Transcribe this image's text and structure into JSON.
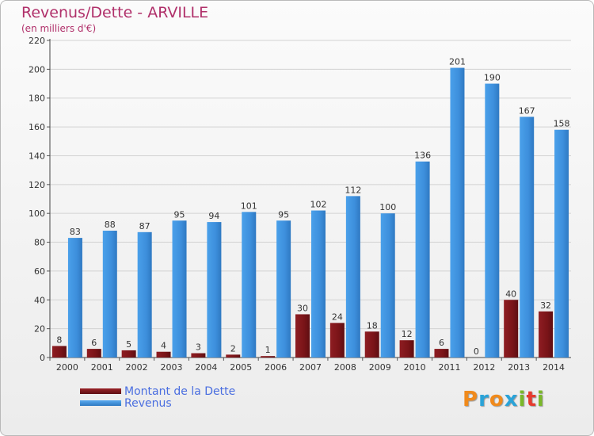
{
  "chart_data": {
    "type": "bar",
    "title": "Revenus/Dette - ARVILLE",
    "subtitle": "(en milliers d'€)",
    "categories": [
      "2000",
      "2001",
      "2002",
      "2003",
      "2004",
      "2005",
      "2006",
      "2007",
      "2008",
      "2009",
      "2010",
      "2011",
      "2012",
      "2013",
      "2014"
    ],
    "series": [
      {
        "name": "Montant de la Dette",
        "color": "#7a1418",
        "values": [
          8,
          6,
          5,
          4,
          3,
          2,
          1,
          30,
          24,
          18,
          12,
          6,
          0,
          40,
          32
        ]
      },
      {
        "name": "Revenus",
        "color": "#3d8fdc",
        "values": [
          83,
          88,
          87,
          95,
          94,
          101,
          95,
          102,
          112,
          100,
          136,
          201,
          190,
          167,
          158
        ]
      }
    ],
    "ylim": [
      0,
      220
    ],
    "yticks": [
      0,
      20,
      40,
      60,
      80,
      100,
      120,
      140,
      160,
      180,
      200,
      220
    ],
    "xlabel": "",
    "ylabel": "",
    "grid": true,
    "legend": "bottom-left"
  },
  "logo": {
    "letters": [
      {
        "ch": "P",
        "color": "#f08a1c"
      },
      {
        "ch": "r",
        "color": "#2aa3d8"
      },
      {
        "ch": "o",
        "color": "#f08a1c"
      },
      {
        "ch": "x",
        "color": "#2aa3d8"
      },
      {
        "ch": "i",
        "color": "#7ab829"
      },
      {
        "ch": "t",
        "color": "#e63b2e"
      },
      {
        "ch": "i",
        "color": "#7ab829"
      }
    ]
  }
}
